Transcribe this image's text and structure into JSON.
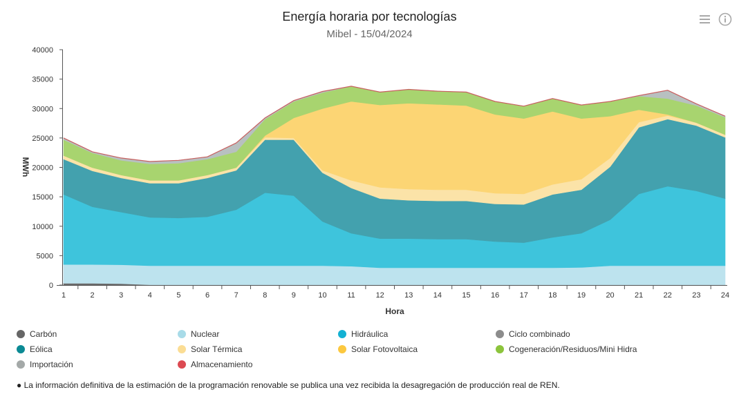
{
  "header": {
    "title": "Energía horaria por tecnologías",
    "subtitle": "Mibel - 15/04/2024",
    "menu_icon": "hamburger-menu-icon",
    "info_icon": "info-circle-icon"
  },
  "footnote": "● La información definitiva de la estimación de la programación renovable se publica una vez recibida la desagregación de producción real de REN.",
  "chart_data": {
    "type": "area",
    "stacked": true,
    "title": "Energía horaria por tecnologías",
    "subtitle": "Mibel - 15/04/2024",
    "xlabel": "Hora",
    "ylabel": "MWh",
    "x": [
      1,
      2,
      3,
      4,
      5,
      6,
      7,
      8,
      9,
      10,
      11,
      12,
      13,
      14,
      15,
      16,
      17,
      18,
      19,
      20,
      21,
      22,
      23,
      24
    ],
    "xticks": [
      "1",
      "2",
      "3",
      "4",
      "5",
      "6",
      "7",
      "8",
      "9",
      "10",
      "11",
      "12",
      "13",
      "14",
      "15",
      "16",
      "17",
      "18",
      "19",
      "20",
      "21",
      "22",
      "23",
      "24"
    ],
    "ylim": [
      0,
      40000
    ],
    "yticks": [
      "0",
      "5000",
      "10000",
      "15000",
      "20000",
      "25000",
      "30000",
      "35000",
      "40000"
    ],
    "grid": false,
    "legend_position": "bottom",
    "series": [
      {
        "name": "Carbón",
        "color": "#6b6b6b",
        "values": [
          300,
          300,
          250,
          0,
          0,
          0,
          0,
          0,
          0,
          0,
          0,
          0,
          0,
          0,
          0,
          0,
          0,
          0,
          0,
          0,
          0,
          0,
          0,
          0
        ]
      },
      {
        "name": "Ciclo combinado",
        "color": "#8e8e8e",
        "values": [
          0,
          0,
          0,
          50,
          50,
          50,
          50,
          50,
          50,
          50,
          50,
          50,
          50,
          50,
          50,
          50,
          50,
          50,
          50,
          50,
          50,
          50,
          50,
          50
        ]
      },
      {
        "name": "Nuclear",
        "color": "#bde3ee",
        "values": [
          3200,
          3200,
          3200,
          3250,
          3250,
          3250,
          3250,
          3250,
          3250,
          3250,
          3150,
          2900,
          2900,
          2900,
          2900,
          2900,
          2900,
          2900,
          2950,
          3250,
          3250,
          3250,
          3250,
          3250
        ]
      },
      {
        "name": "Hidráulica",
        "color": "#3ec4dc",
        "values": [
          11900,
          9800,
          8950,
          8200,
          8100,
          8300,
          9500,
          12400,
          11900,
          7500,
          5600,
          4950,
          4950,
          4850,
          4850,
          4450,
          4250,
          5150,
          5800,
          7800,
          12200,
          13500,
          12700,
          11400
        ]
      },
      {
        "name": "Eólica",
        "color": "#43a1ae",
        "values": [
          6000,
          6100,
          5800,
          5800,
          5900,
          6600,
          6700,
          9000,
          9500,
          8300,
          7700,
          6800,
          6500,
          6500,
          6500,
          6400,
          6500,
          7300,
          7400,
          9000,
          11300,
          11400,
          11100,
          10400
        ]
      },
      {
        "name": "Solar Térmica",
        "color": "#fbe3a8",
        "values": [
          600,
          550,
          500,
          500,
          500,
          500,
          450,
          400,
          300,
          400,
          1300,
          1900,
          1900,
          1900,
          1900,
          1800,
          1800,
          1700,
          1800,
          1500,
          900,
          600,
          500,
          450
        ]
      },
      {
        "name": "Solar Fotovoltaica",
        "color": "#fcd574",
        "values": [
          0,
          0,
          0,
          0,
          0,
          0,
          0,
          300,
          3400,
          10500,
          13400,
          14000,
          14600,
          14500,
          14300,
          13400,
          12800,
          12400,
          10300,
          7100,
          2100,
          200,
          0,
          0
        ]
      },
      {
        "name": "Cogeneración/Residuos/Mini Hidra",
        "color": "#a8d46f",
        "values": [
          2700,
          2500,
          2500,
          2800,
          2900,
          2700,
          2700,
          2800,
          2800,
          2700,
          2600,
          2200,
          2350,
          2250,
          2300,
          2200,
          2100,
          2200,
          2300,
          2500,
          2300,
          2700,
          2900,
          2950
        ]
      },
      {
        "name": "Importación",
        "color": "#b8c0c0",
        "values": [
          300,
          200,
          400,
          400,
          500,
          400,
          1500,
          200,
          150,
          200,
          0,
          0,
          0,
          0,
          0,
          0,
          0,
          0,
          0,
          0,
          100,
          1400,
          300,
          200
        ]
      },
      {
        "name": "Almacenamiento",
        "color": "#c85a5a",
        "values": [
          0,
          0,
          0,
          0,
          0,
          0,
          0,
          0,
          0,
          0,
          0,
          0,
          0,
          0,
          0,
          0,
          0,
          0,
          0,
          0,
          0,
          0,
          0,
          0
        ]
      }
    ]
  },
  "legend": [
    {
      "label": "Carbón",
      "color": "#666666"
    },
    {
      "label": "Nuclear",
      "color": "#a8dbe8"
    },
    {
      "label": "Hidráulica",
      "color": "#14b1d3"
    },
    {
      "label": "Ciclo combinado",
      "color": "#8c8c8c"
    },
    {
      "label": "Eólica",
      "color": "#0b8a94"
    },
    {
      "label": "Solar Térmica",
      "color": "#fbdd94"
    },
    {
      "label": "Solar Fotovoltaica",
      "color": "#fcc83f"
    },
    {
      "label": "Cogeneración/Residuos/Mini Hidra",
      "color": "#8cc43c"
    },
    {
      "label": "Importación",
      "color": "#a4a9a8"
    },
    {
      "label": "Almacenamiento",
      "color": "#dc4a52"
    }
  ]
}
